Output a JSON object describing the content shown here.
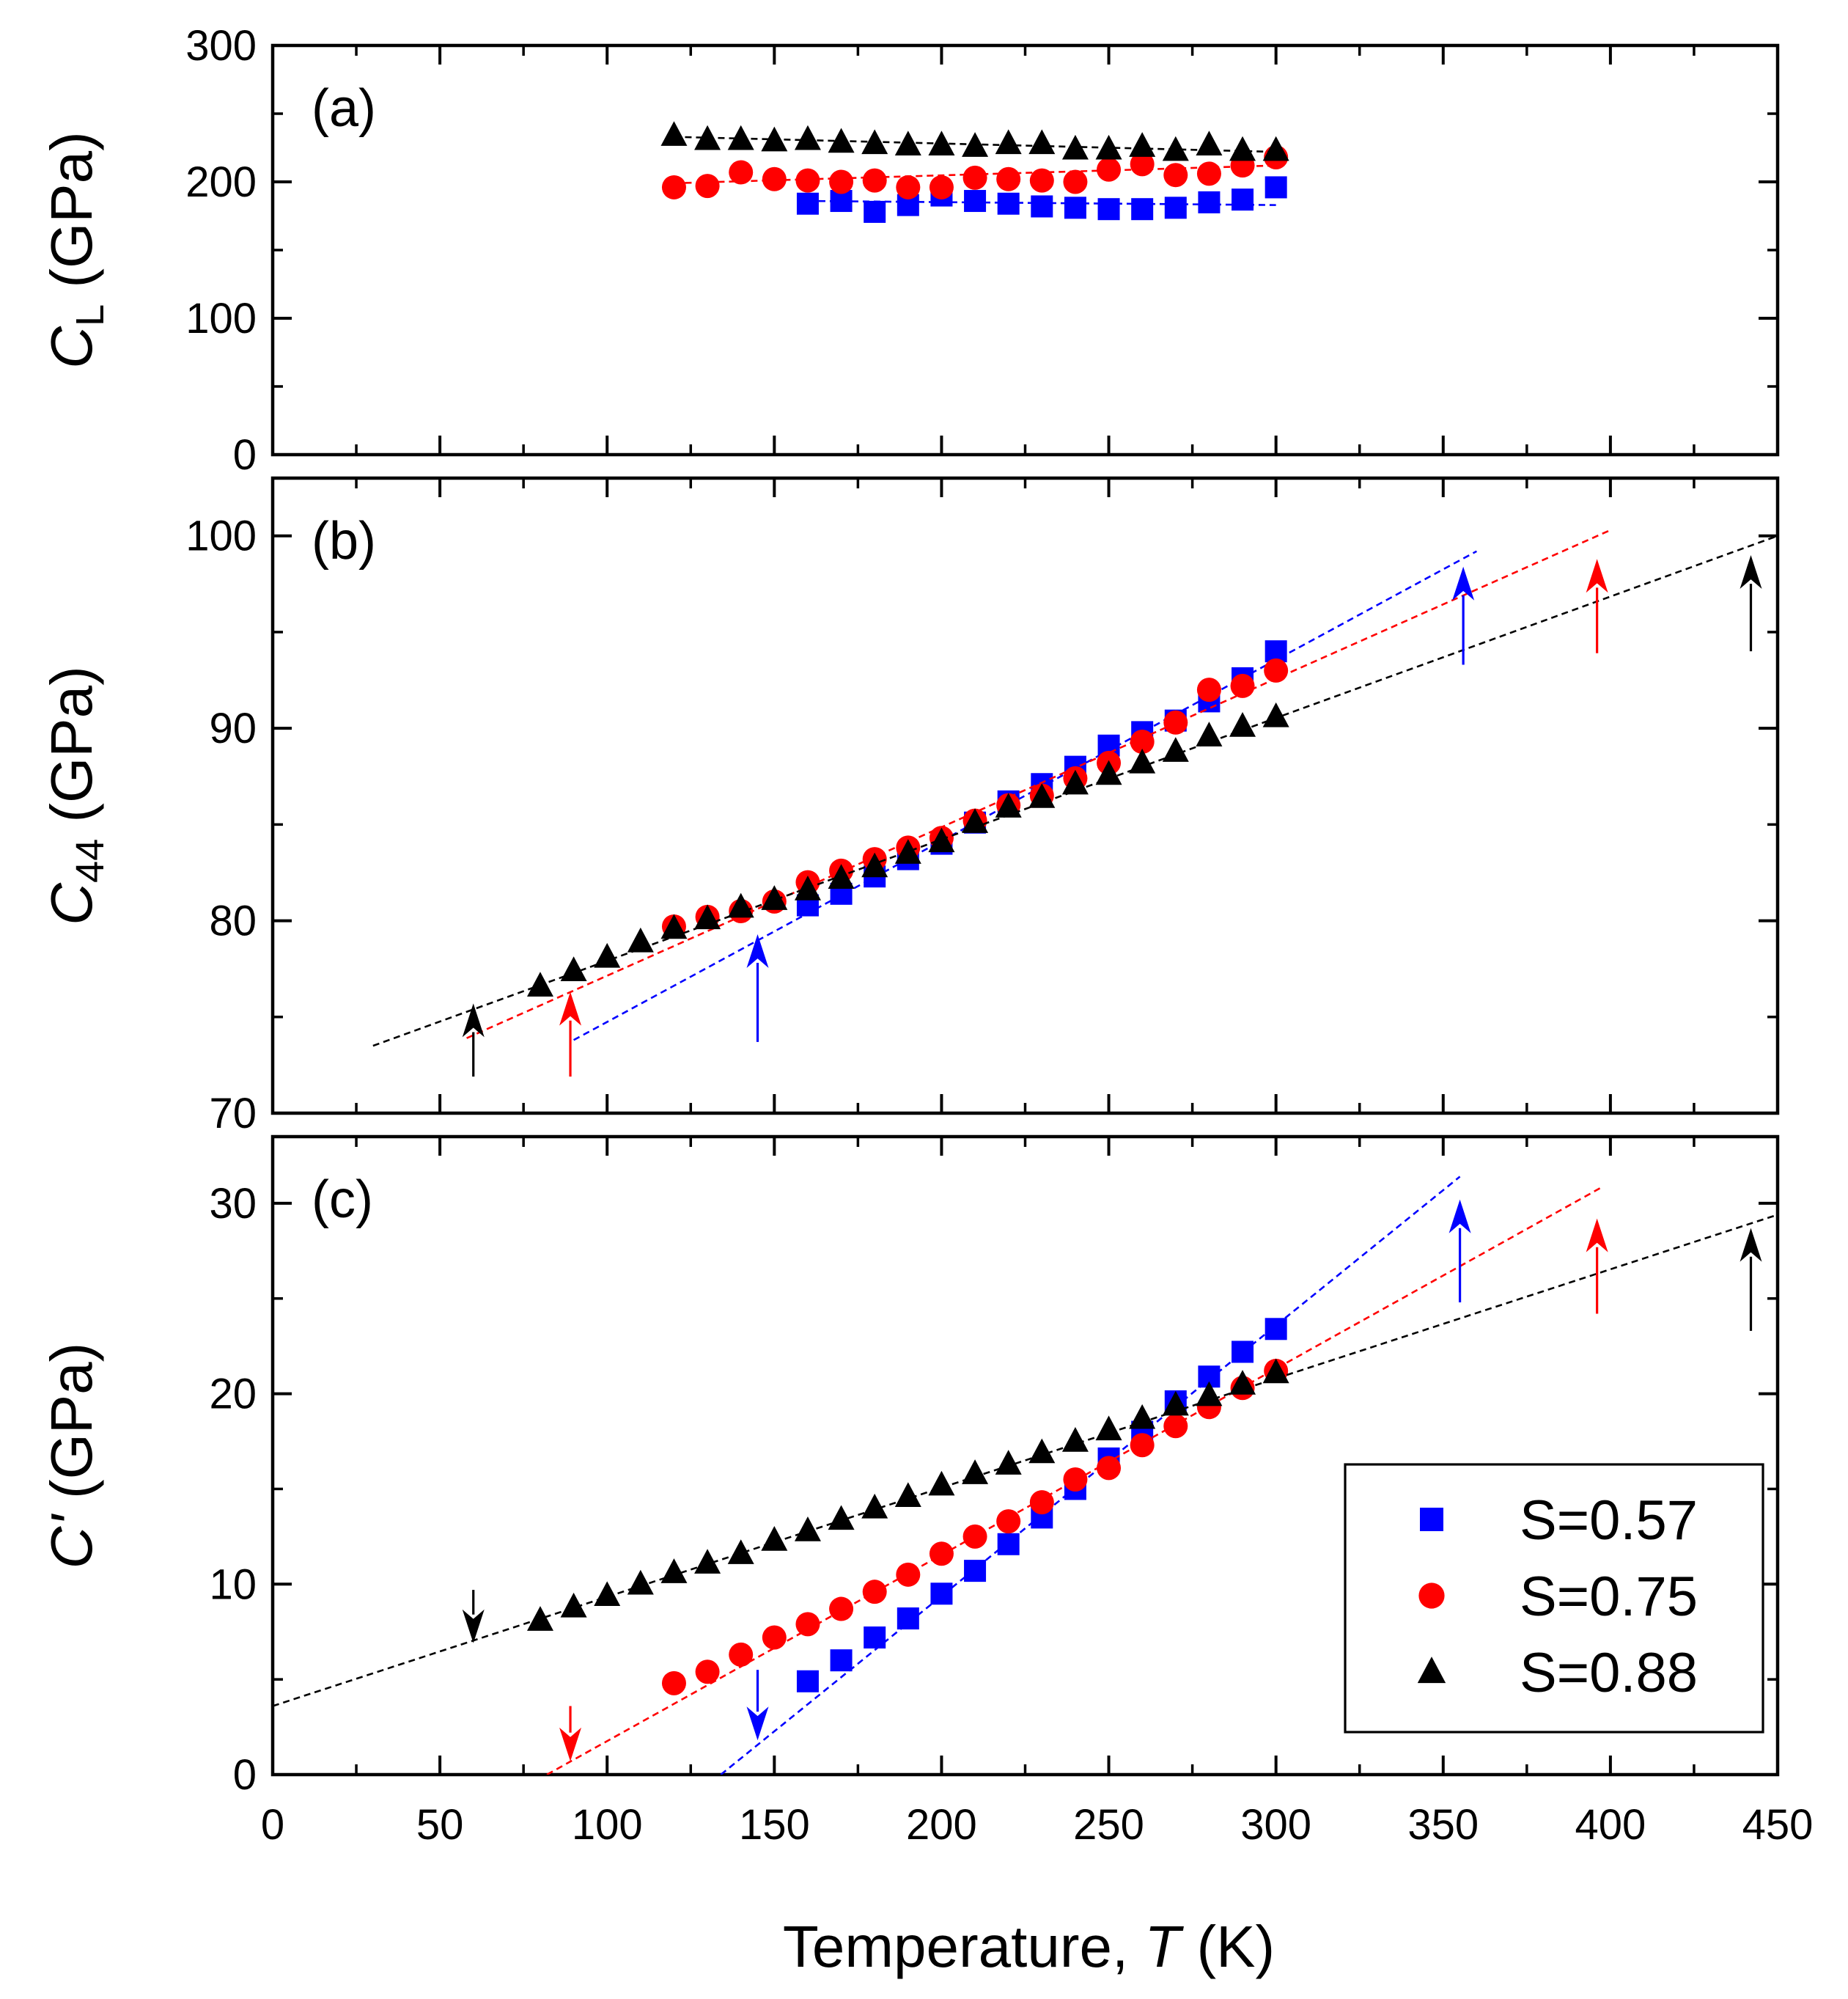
{
  "chart_data": [
    {
      "panel": "a",
      "type": "scatter",
      "tag": "(a)",
      "ylabel": {
        "symbol": "C",
        "sub": "L",
        "unit": "(GPa)"
      },
      "ylim": [
        0,
        300
      ],
      "yticks": [
        0,
        100,
        200,
        300
      ],
      "xlim": [
        0,
        450
      ],
      "series": [
        {
          "name": "S=0.57",
          "marker": "square",
          "color": "#0000ff",
          "x": [
            160,
            170,
            180,
            190,
            200,
            210,
            220,
            230,
            240,
            250,
            260,
            270,
            280,
            290,
            300
          ],
          "y": [
            184,
            186,
            178,
            183,
            190,
            186,
            184,
            182,
            181,
            180,
            180,
            181,
            185,
            187,
            196
          ],
          "fit": [
            [
              160,
              186
            ],
            [
              300,
              183
            ]
          ]
        },
        {
          "name": "S=0.75",
          "marker": "circle",
          "color": "#ff0000",
          "x": [
            120,
            130,
            140,
            150,
            160,
            170,
            180,
            190,
            200,
            210,
            220,
            230,
            240,
            250,
            260,
            270,
            280,
            290,
            300
          ],
          "y": [
            196,
            197,
            207,
            202,
            201,
            200,
            201,
            196,
            196,
            203,
            202,
            201,
            200,
            209,
            213,
            205,
            206,
            212,
            218
          ],
          "fit": [
            [
              120,
              199
            ],
            [
              300,
              212
            ]
          ]
        },
        {
          "name": "S=0.88",
          "marker": "triangle",
          "color": "#000000",
          "x": [
            120,
            130,
            140,
            150,
            160,
            170,
            180,
            190,
            200,
            210,
            220,
            230,
            240,
            250,
            260,
            270,
            280,
            290,
            300
          ],
          "y": [
            234,
            231,
            231,
            230,
            231,
            229,
            228,
            227,
            227,
            226,
            228,
            228,
            224,
            224,
            226,
            223,
            227,
            223,
            223
          ],
          "fit": [
            [
              120,
              233
            ],
            [
              300,
              222
            ]
          ]
        }
      ]
    },
    {
      "panel": "b",
      "type": "scatter",
      "tag": "(b)",
      "ylabel": {
        "symbol": "C",
        "sub": "44",
        "unit": "(GPa)"
      },
      "ylim": [
        70,
        103
      ],
      "yticks": [
        70,
        80,
        90,
        100
      ],
      "xlim": [
        0,
        450
      ],
      "series": [
        {
          "name": "S=0.57",
          "marker": "square",
          "color": "#0000ff",
          "x": [
            160,
            170,
            180,
            190,
            200,
            210,
            220,
            230,
            240,
            250,
            260,
            270,
            280,
            290,
            300
          ],
          "y": [
            80.8,
            81.4,
            82.3,
            83.2,
            84.0,
            85.1,
            86.2,
            87.1,
            88.0,
            89.1,
            89.8,
            90.4,
            91.4,
            92.6,
            94.0
          ],
          "fit": [
            [
              90,
              73.8
            ],
            [
              360,
              99.2
            ]
          ]
        },
        {
          "name": "S=0.75",
          "marker": "circle",
          "color": "#ff0000",
          "x": [
            120,
            130,
            140,
            150,
            160,
            170,
            180,
            190,
            200,
            210,
            220,
            230,
            240,
            250,
            260,
            270,
            280,
            290,
            300
          ],
          "y": [
            79.7,
            80.2,
            80.5,
            81.0,
            82.0,
            82.6,
            83.2,
            83.8,
            84.3,
            85.2,
            86.0,
            86.5,
            87.4,
            88.2,
            89.3,
            90.3,
            92.0,
            92.2,
            93.0
          ],
          "fit": [
            [
              58,
              73.9
            ],
            [
              400,
              100.3
            ]
          ]
        },
        {
          "name": "S=0.88",
          "marker": "triangle",
          "color": "#000000",
          "x": [
            80,
            90,
            100,
            110,
            120,
            130,
            140,
            150,
            160,
            170,
            180,
            190,
            200,
            210,
            220,
            230,
            240,
            250,
            260,
            270,
            280,
            290,
            300
          ],
          "y": [
            76.6,
            77.4,
            78.1,
            78.9,
            79.6,
            80.1,
            80.7,
            81.1,
            81.6,
            82.2,
            82.8,
            83.5,
            84.1,
            85.1,
            85.9,
            86.4,
            87.1,
            87.6,
            88.2,
            88.8,
            89.6,
            90.1,
            90.6
          ],
          "fit": [
            [
              30,
              73.5
            ],
            [
              450,
              100.0
            ]
          ]
        }
      ],
      "arrows": [
        {
          "x": 60,
          "y0": 71.9,
          "y1": 75.7,
          "color": "#000000"
        },
        {
          "x": 89,
          "y0": 71.9,
          "y1": 76.3,
          "color": "#ff0000"
        },
        {
          "x": 145,
          "y0": 73.7,
          "y1": 79.3,
          "color": "#0000ff"
        },
        {
          "x": 356,
          "y0": 93.3,
          "y1": 98.4,
          "color": "#0000ff"
        },
        {
          "x": 396,
          "y0": 93.9,
          "y1": 98.8,
          "color": "#ff0000"
        },
        {
          "x": 442,
          "y0": 94.0,
          "y1": 99.0,
          "color": "#000000"
        }
      ]
    },
    {
      "panel": "c",
      "type": "scatter",
      "tag": "(c)",
      "ylabel": {
        "symbol": "C'",
        "sub": "",
        "unit": "(GPa)"
      },
      "ylim": [
        0,
        33.5
      ],
      "yticks": [
        0,
        10,
        20,
        30
      ],
      "xlim": [
        0,
        450
      ],
      "xticks": [
        0,
        50,
        100,
        150,
        200,
        250,
        300,
        350,
        400,
        450
      ],
      "xlabel": {
        "prefix": "Temperature, ",
        "symbol": "T",
        "suffix": " (K)"
      },
      "series": [
        {
          "name": "S=0.57",
          "marker": "square",
          "color": "#0000ff",
          "x": [
            160,
            170,
            180,
            190,
            200,
            210,
            220,
            230,
            240,
            250,
            260,
            270,
            280,
            290,
            300
          ],
          "y": [
            4.9,
            6.0,
            7.2,
            8.2,
            9.5,
            10.7,
            12.1,
            13.5,
            15.0,
            16.6,
            18.0,
            19.6,
            20.9,
            22.2,
            23.4
          ],
          "fit": [
            [
              134,
              0
            ],
            [
              355,
              31.4
            ]
          ]
        },
        {
          "name": "S=0.75",
          "marker": "circle",
          "color": "#ff0000",
          "x": [
            120,
            130,
            140,
            150,
            160,
            170,
            180,
            190,
            200,
            210,
            220,
            230,
            240,
            250,
            260,
            270,
            280,
            290,
            300
          ],
          "y": [
            4.8,
            5.4,
            6.3,
            7.2,
            7.9,
            8.7,
            9.6,
            10.5,
            11.6,
            12.5,
            13.3,
            14.3,
            15.5,
            16.1,
            17.3,
            18.3,
            19.3,
            20.3,
            21.2
          ],
          "fit": [
            [
              82,
              0
            ],
            [
              398,
              30.9
            ]
          ]
        },
        {
          "name": "S=0.88",
          "marker": "triangle",
          "color": "#000000",
          "x": [
            80,
            90,
            100,
            110,
            120,
            130,
            140,
            150,
            160,
            170,
            180,
            190,
            200,
            210,
            220,
            230,
            240,
            250,
            260,
            270,
            280,
            290,
            300
          ],
          "y": [
            8.1,
            8.8,
            9.4,
            10.0,
            10.6,
            11.1,
            11.6,
            12.3,
            12.8,
            13.4,
            14.0,
            14.6,
            15.2,
            15.8,
            16.3,
            16.9,
            17.5,
            18.1,
            18.7,
            19.4,
            19.9,
            20.5,
            21.1
          ],
          "fit": [
            [
              0,
              3.6
            ],
            [
              450,
              29.4
            ]
          ]
        }
      ],
      "arrows": [
        {
          "x": 60,
          "y0": 9.7,
          "y1": 6.9,
          "color": "#000000"
        },
        {
          "x": 89,
          "y0": 3.6,
          "y1": 0.7,
          "color": "#ff0000"
        },
        {
          "x": 145,
          "y0": 5.5,
          "y1": 1.8,
          "color": "#0000ff"
        },
        {
          "x": 355,
          "y0": 24.8,
          "y1": 30.2,
          "color": "#0000ff"
        },
        {
          "x": 396,
          "y0": 24.2,
          "y1": 29.2,
          "color": "#ff0000"
        },
        {
          "x": 442,
          "y0": 23.3,
          "y1": 28.7,
          "color": "#000000"
        }
      ],
      "legend": {
        "placement": "bottom-right",
        "entries": [
          {
            "label": "S=0.57",
            "marker": "square",
            "color": "#0000ff"
          },
          {
            "label": "S=0.75",
            "marker": "circle",
            "color": "#ff0000"
          },
          {
            "label": "S=0.88",
            "marker": "triangle",
            "color": "#000000"
          }
        ]
      }
    }
  ]
}
